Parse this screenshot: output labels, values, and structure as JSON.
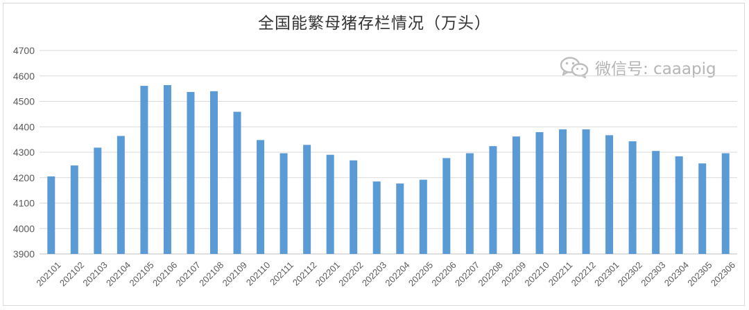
{
  "chart_data": {
    "type": "bar",
    "title": "全国能繁母猪存栏情况（万头）",
    "categories": [
      "202101",
      "202102",
      "202103",
      "202104",
      "202105",
      "202106",
      "202107",
      "202108",
      "202109",
      "202110",
      "202111",
      "202112",
      "202201",
      "202202",
      "202203",
      "202204",
      "202205",
      "202206",
      "202207",
      "202208",
      "202209",
      "202210",
      "202211",
      "202212",
      "202301",
      "202302",
      "202303",
      "202304",
      "202305",
      "202306"
    ],
    "values": [
      4205,
      4248,
      4318,
      4364,
      4561,
      4564,
      4537,
      4540,
      4459,
      4348,
      4296,
      4329,
      4290,
      4268,
      4185,
      4177,
      4192,
      4277,
      4296,
      4324,
      4362,
      4379,
      4390,
      4390,
      4367,
      4343,
      4305,
      4284,
      4256,
      4296
    ],
    "xlabel": "",
    "ylabel": "",
    "ylim": [
      3900,
      4700
    ],
    "yticks": [
      3900,
      4000,
      4100,
      4200,
      4300,
      4400,
      4500,
      4600,
      4700
    ],
    "bar_color": "#5b9bd5",
    "grid": true,
    "legend": "none"
  },
  "watermark": {
    "icon": "wechat-icon",
    "text": "微信号: caaapig"
  }
}
